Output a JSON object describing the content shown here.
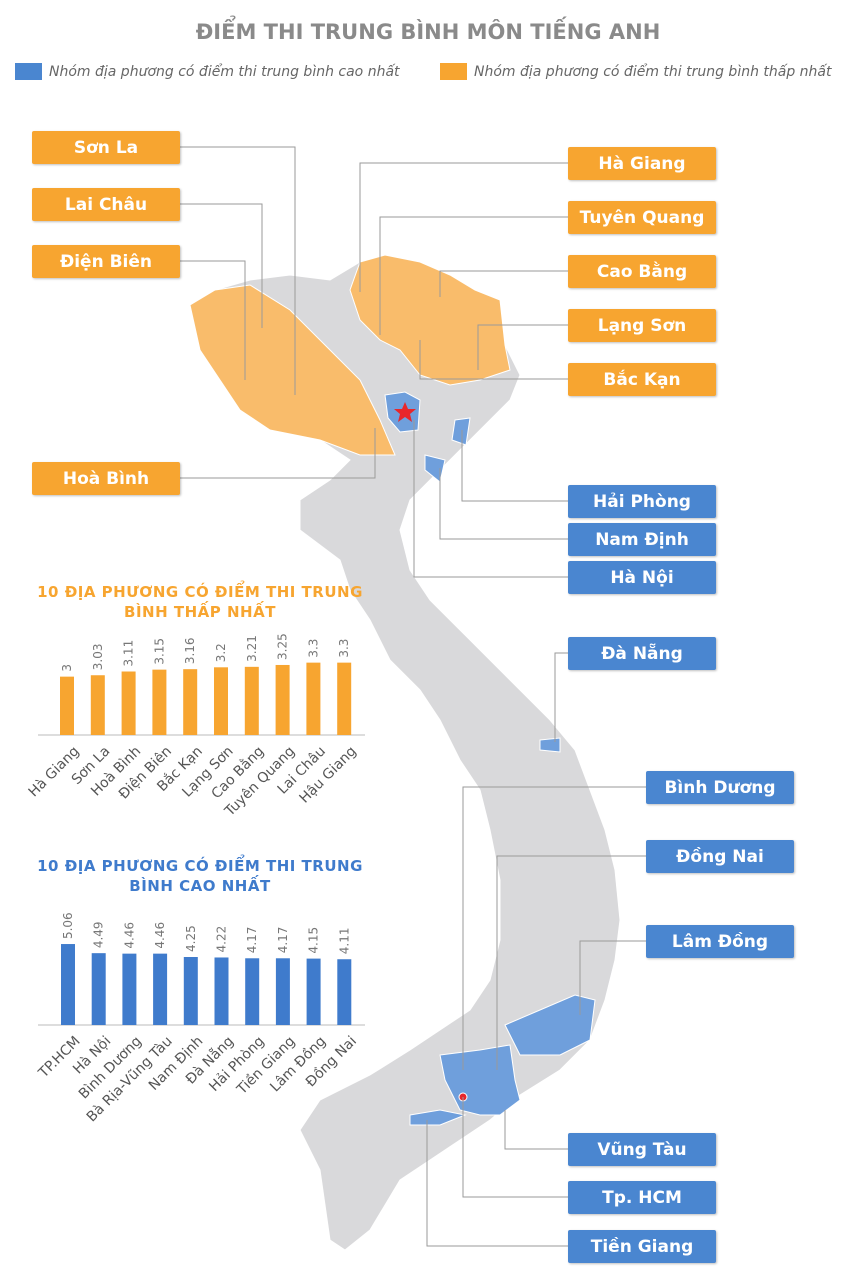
{
  "title": "ĐIỂM THI TRUNG BÌNH MÔN TIẾNG ANH",
  "legend": [
    {
      "name": "Nhóm địa phương có điểm thi trung bình cao nhất",
      "color": "#4a86d0"
    },
    {
      "name": "Nhóm địa phương có điểm thi trung bình thấp nhất",
      "color": "#f7a530"
    }
  ],
  "map_labels": {
    "lowest": [
      "Sơn La",
      "Lai Châu",
      "Điện Biên",
      "Hoà Bình",
      "Hà Giang",
      "Tuyên Quang",
      "Cao Bằng",
      "Lạng Sơn",
      "Bắc Kạn"
    ],
    "highest": [
      "Hải Phòng",
      "Nam Định",
      "Hà Nội",
      "Đà Nẵng",
      "Bình Dương",
      "Đồng Nai",
      "Lâm Đồng",
      "Vũng Tàu",
      "Tp. HCM",
      "Tiền Giang"
    ]
  },
  "chart_data": [
    {
      "type": "bar",
      "title": "10 ĐỊA PHƯƠNG CÓ ĐIỂM THI TRUNG BÌNH THẤP NHẤT",
      "categories": [
        "Hà Giang",
        "Sơn La",
        "Hoà Bình",
        "Điện Biên",
        "Bắc Kạn",
        "Lạng Sơn",
        "Cao Bằng",
        "Tuyên Quang",
        "Lai Châu",
        "Hậu Giang"
      ],
      "values": [
        3,
        3.03,
        3.11,
        3.15,
        3.16,
        3.2,
        3.21,
        3.25,
        3.3,
        3.3
      ],
      "color": "#f7a530",
      "ylim": [
        1.75,
        3.5
      ]
    },
    {
      "type": "bar",
      "title": "10 ĐỊA PHƯƠNG CÓ ĐIỂM THI TRUNG BÌNH CAO NHẤT",
      "categories": [
        "TP.HCM",
        "Hà Nội",
        "Bình Dương",
        "Bà Rịa-Vũng Tàu",
        "Nam Định",
        "Đà Nẵng",
        "Hải Phòng",
        "Tiền Giang",
        "Lâm Đồng",
        "Đồng Nai"
      ],
      "values": [
        5.06,
        4.49,
        4.46,
        4.46,
        4.25,
        4.22,
        4.17,
        4.17,
        4.15,
        4.11
      ],
      "color": "#3f7bcc",
      "ylim": [
        0,
        6
      ]
    }
  ]
}
